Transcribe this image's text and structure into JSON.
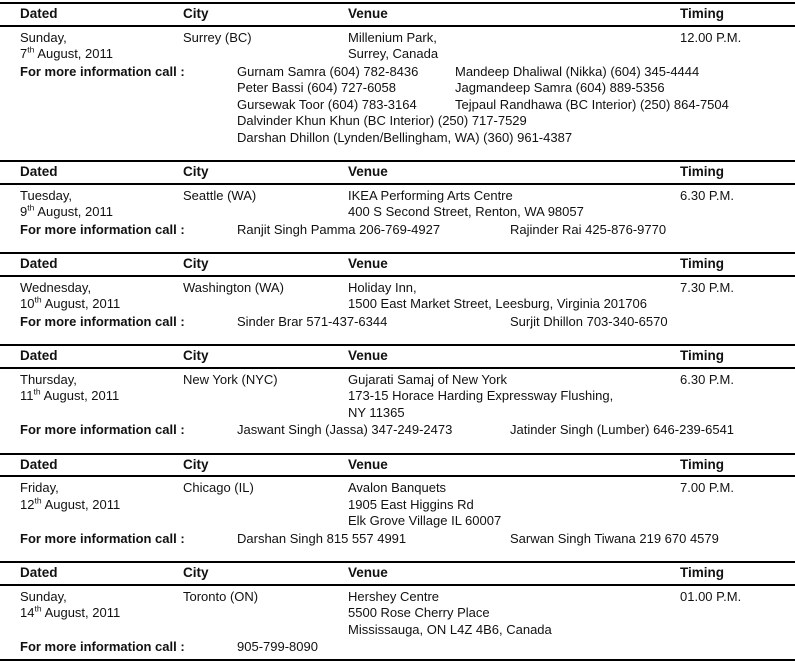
{
  "table": {
    "headers": {
      "dated": "Dated",
      "city": "City",
      "venue": "Venue",
      "timing": "Timing"
    },
    "info_label": "For more information call :",
    "sections": [
      {
        "day_name": "Sunday,",
        "day_num": "7",
        "ordinal": "th",
        "rest": "August, 2011",
        "city": "Surrey (BC)",
        "venue_lines": [
          "Millenium Park,",
          "Surrey, Canada"
        ],
        "timing": "12.00 P.M.",
        "contacts": [
          [
            "Gurnam Samra (604) 782-8436",
            "Mandeep Dhaliwal (Nikka) (604) 345-4444"
          ],
          [
            "Peter Bassi (604) 727-6058",
            "Jagmandeep Samra (604) 889-5356"
          ],
          [
            "Gursewak Toor (604) 783-3164",
            "Tejpaul Randhawa (BC Interior) (250) 864-7504"
          ],
          [
            "Dalvinder Khun Khun (BC Interior) (250) 717-7529",
            ""
          ],
          [
            "Darshan Dhillon (Lynden/Bellingham, WA) (360) 961-4387",
            ""
          ]
        ]
      },
      {
        "day_name": "Tuesday,",
        "day_num": "9",
        "ordinal": "th",
        "rest": "August, 2011",
        "city": "Seattle (WA)",
        "venue_lines": [
          "IKEA Performing Arts Centre",
          "400 S Second Street, Renton, WA 98057"
        ],
        "timing": "6.30 P.M.",
        "contacts": [
          [
            "Ranjit Singh Pamma 206-769-4927",
            "Rajinder Rai 425-876-9770"
          ]
        ]
      },
      {
        "day_name": "Wednesday,",
        "day_num": "10",
        "ordinal": "th",
        "rest": "August, 2011",
        "city": "Washington (WA)",
        "venue_lines": [
          "Holiday Inn,",
          "1500 East Market Street, Leesburg, Virginia 201706"
        ],
        "timing": "7.30 P.M.",
        "contacts": [
          [
            "Sinder Brar 571-437-6344",
            "Surjit Dhillon 703-340-6570"
          ]
        ]
      },
      {
        "day_name": "Thursday,",
        "day_num": "11",
        "ordinal": "th",
        "rest": "August, 2011",
        "city": "New York (NYC)",
        "venue_lines": [
          "Gujarati Samaj of New York",
          "173-15 Horace Harding Expressway Flushing,",
          "NY 11365"
        ],
        "timing": "6.30 P.M.",
        "contacts": [
          [
            "Jaswant Singh (Jassa) 347-249-2473",
            "Jatinder Singh (Lumber) 646-239-6541"
          ]
        ]
      },
      {
        "day_name": "Friday,",
        "day_num": "12",
        "ordinal": "th",
        "rest": "August, 2011",
        "city": "Chicago (IL)",
        "venue_lines": [
          "Avalon Banquets",
          "1905 East Higgins Rd",
          "Elk Grove Village IL 60007"
        ],
        "timing": "7.00 P.M.",
        "contacts": [
          [
            "Darshan Singh 815 557 4991",
            "Sarwan Singh Tiwana 219 670 4579"
          ]
        ]
      },
      {
        "day_name": "Sunday,",
        "day_num": "14",
        "ordinal": "th",
        "rest": "August, 2011",
        "city": "Toronto (ON)",
        "venue_lines": [
          "Hershey Centre",
          "5500 Rose Cherry Place",
          "Mississauga, ON L4Z 4B6, Canada"
        ],
        "timing": "01.00 P.M.",
        "contacts": [
          [
            "905-799-8090",
            ""
          ]
        ]
      }
    ]
  }
}
